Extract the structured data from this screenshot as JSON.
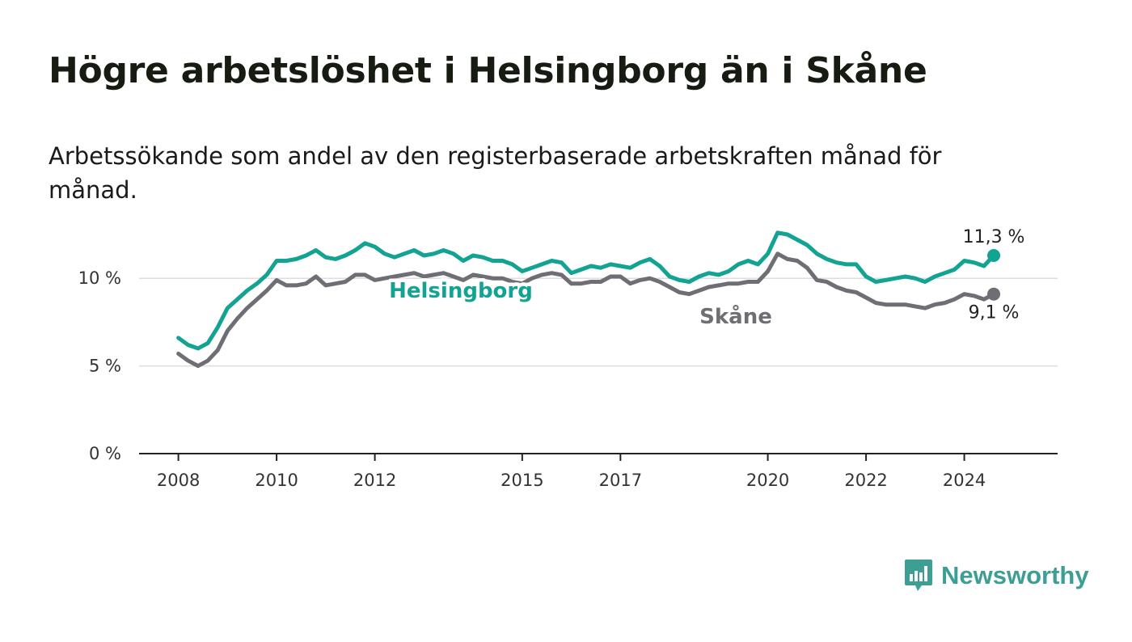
{
  "title": "Högre arbetslöshet i Helsingborg än i Skåne",
  "subtitle": "Arbetssökande som andel av den registerbaserade arbetskraften månad för månad.",
  "brand": {
    "name": "Newsworthy",
    "icon": "newsworthy-logo-icon",
    "color": "#3d9e94"
  },
  "colors": {
    "helsingborg": "#12a392",
    "skane": "#6e6e74",
    "grid": "#dddddd",
    "axis": "#222222"
  },
  "chart_data": {
    "type": "line",
    "title": "Högre arbetslöshet i Helsingborg än i Skåne",
    "subtitle": "Arbetssökande som andel av den registerbaserade arbetskraften månad för månad.",
    "xlabel": "",
    "ylabel": "",
    "xlim": [
      2007.2,
      2025.9
    ],
    "ylim": [
      0,
      12.5
    ],
    "grid": true,
    "y_ticks": [
      {
        "value": 0,
        "label": "0 %"
      },
      {
        "value": 5,
        "label": "5 %"
      },
      {
        "value": 10,
        "label": "10 %"
      }
    ],
    "x_ticks": [
      {
        "value": 2008,
        "label": "2008"
      },
      {
        "value": 2010,
        "label": "2010"
      },
      {
        "value": 2012,
        "label": "2012"
      },
      {
        "value": 2015,
        "label": "2015"
      },
      {
        "value": 2017,
        "label": "2017"
      },
      {
        "value": 2020,
        "label": "2020"
      },
      {
        "value": 2022,
        "label": "2022"
      },
      {
        "value": 2024,
        "label": "2024"
      }
    ],
    "series": [
      {
        "name": "Helsingborg",
        "color": "#12a392",
        "end_label": "11,3 %",
        "x": [
          2008.0,
          2008.2,
          2008.4,
          2008.6,
          2008.8,
          2009.0,
          2009.2,
          2009.4,
          2009.6,
          2009.8,
          2010.0,
          2010.2,
          2010.4,
          2010.6,
          2010.8,
          2011.0,
          2011.2,
          2011.4,
          2011.6,
          2011.8,
          2012.0,
          2012.2,
          2012.4,
          2012.6,
          2012.8,
          2013.0,
          2013.2,
          2013.4,
          2013.6,
          2013.8,
          2014.0,
          2014.2,
          2014.4,
          2014.6,
          2014.8,
          2015.0,
          2015.2,
          2015.4,
          2015.6,
          2015.8,
          2016.0,
          2016.2,
          2016.4,
          2016.6,
          2016.8,
          2017.0,
          2017.2,
          2017.4,
          2017.6,
          2017.8,
          2018.0,
          2018.2,
          2018.4,
          2018.6,
          2018.8,
          2019.0,
          2019.2,
          2019.4,
          2019.6,
          2019.8,
          2020.0,
          2020.2,
          2020.4,
          2020.6,
          2020.8,
          2021.0,
          2021.2,
          2021.4,
          2021.6,
          2021.8,
          2022.0,
          2022.2,
          2022.4,
          2022.6,
          2022.8,
          2023.0,
          2023.2,
          2023.4,
          2023.6,
          2023.8,
          2024.0,
          2024.2,
          2024.4,
          2024.6
        ],
        "y": [
          6.6,
          6.2,
          6.0,
          6.3,
          7.2,
          8.3,
          8.8,
          9.3,
          9.7,
          10.2,
          11.0,
          11.0,
          11.1,
          11.3,
          11.6,
          11.2,
          11.1,
          11.3,
          11.6,
          12.0,
          11.8,
          11.4,
          11.2,
          11.4,
          11.6,
          11.3,
          11.4,
          11.6,
          11.4,
          11.0,
          11.3,
          11.2,
          11.0,
          11.0,
          10.8,
          10.4,
          10.6,
          10.8,
          11.0,
          10.9,
          10.3,
          10.5,
          10.7,
          10.6,
          10.8,
          10.7,
          10.6,
          10.9,
          11.1,
          10.7,
          10.1,
          9.9,
          9.8,
          10.1,
          10.3,
          10.2,
          10.4,
          10.8,
          11.0,
          10.8,
          11.4,
          12.6,
          12.5,
          12.2,
          11.9,
          11.4,
          11.1,
          10.9,
          10.8,
          10.8,
          10.1,
          9.8,
          9.9,
          10.0,
          10.1,
          10.0,
          9.8,
          10.1,
          10.3,
          10.5,
          11.0,
          10.9,
          10.7,
          11.3
        ]
      },
      {
        "name": "Skåne",
        "color": "#6e6e74",
        "end_label": "9,1 %",
        "x": [
          2008.0,
          2008.2,
          2008.4,
          2008.6,
          2008.8,
          2009.0,
          2009.2,
          2009.4,
          2009.6,
          2009.8,
          2010.0,
          2010.2,
          2010.4,
          2010.6,
          2010.8,
          2011.0,
          2011.2,
          2011.4,
          2011.6,
          2011.8,
          2012.0,
          2012.2,
          2012.4,
          2012.6,
          2012.8,
          2013.0,
          2013.2,
          2013.4,
          2013.6,
          2013.8,
          2014.0,
          2014.2,
          2014.4,
          2014.6,
          2014.8,
          2015.0,
          2015.2,
          2015.4,
          2015.6,
          2015.8,
          2016.0,
          2016.2,
          2016.4,
          2016.6,
          2016.8,
          2017.0,
          2017.2,
          2017.4,
          2017.6,
          2017.8,
          2018.0,
          2018.2,
          2018.4,
          2018.6,
          2018.8,
          2019.0,
          2019.2,
          2019.4,
          2019.6,
          2019.8,
          2020.0,
          2020.2,
          2020.4,
          2020.6,
          2020.8,
          2021.0,
          2021.2,
          2021.4,
          2021.6,
          2021.8,
          2022.0,
          2022.2,
          2022.4,
          2022.6,
          2022.8,
          2023.0,
          2023.2,
          2023.4,
          2023.6,
          2023.8,
          2024.0,
          2024.2,
          2024.4,
          2024.6
        ],
        "y": [
          5.7,
          5.3,
          5.0,
          5.3,
          5.9,
          7.0,
          7.7,
          8.3,
          8.8,
          9.3,
          9.9,
          9.6,
          9.6,
          9.7,
          10.1,
          9.6,
          9.7,
          9.8,
          10.2,
          10.2,
          9.9,
          10.0,
          10.1,
          10.2,
          10.3,
          10.1,
          10.2,
          10.3,
          10.1,
          9.9,
          10.2,
          10.1,
          10.0,
          10.0,
          9.8,
          9.7,
          10.0,
          10.2,
          10.3,
          10.2,
          9.7,
          9.7,
          9.8,
          9.8,
          10.1,
          10.1,
          9.7,
          9.9,
          10.0,
          9.8,
          9.5,
          9.2,
          9.1,
          9.3,
          9.5,
          9.6,
          9.7,
          9.7,
          9.8,
          9.8,
          10.4,
          11.4,
          11.1,
          11.0,
          10.6,
          9.9,
          9.8,
          9.5,
          9.3,
          9.2,
          8.9,
          8.6,
          8.5,
          8.5,
          8.5,
          8.4,
          8.3,
          8.5,
          8.6,
          8.8,
          9.1,
          9.0,
          8.8,
          9.1
        ]
      }
    ]
  }
}
